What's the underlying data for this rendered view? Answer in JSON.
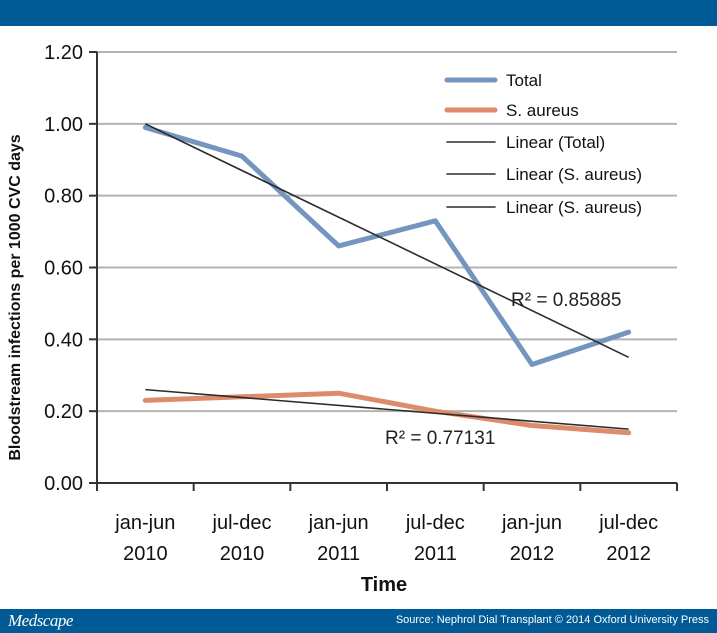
{
  "header": {},
  "footer": {
    "brand": "Medscape",
    "source": "Source: Nephrol Dial Transplant © 2014 Oxford University Press"
  },
  "colors": {
    "bar": "#005a96",
    "total": "#7496be",
    "s_aureus": "#de8b6b",
    "trend": "#2b2b2b",
    "grid": "#b3b3b3"
  },
  "chart_data": {
    "type": "line",
    "ylabel": "Bloodstream infections per 1000 CVC days",
    "xlabel": "Time",
    "ylim": [
      0,
      1.2
    ],
    "yticks": [
      "0.00",
      "0.20",
      "0.40",
      "0.60",
      "0.80",
      "1.00",
      "1.20"
    ],
    "categories": [
      [
        "jan-jun",
        "2010"
      ],
      [
        "jul-dec",
        "2010"
      ],
      [
        "jan-jun",
        "2011"
      ],
      [
        "jul-dec",
        "2011"
      ],
      [
        "jan-jun",
        "2012"
      ],
      [
        "jul-dec",
        "2012"
      ]
    ],
    "series": [
      {
        "name": "Total",
        "values": [
          0.99,
          0.91,
          0.66,
          0.73,
          0.33,
          0.42
        ]
      },
      {
        "name": "S. aureus",
        "values": [
          0.23,
          0.24,
          0.25,
          0.2,
          0.16,
          0.14
        ]
      }
    ],
    "trendlines": [
      {
        "name": "Linear (Total)",
        "start": 1.0,
        "end": 0.35,
        "r2": "R² = 0.85885"
      },
      {
        "name": "Linear (S. aureus)",
        "start": 0.26,
        "end": 0.15,
        "r2": "R² = 0.77131"
      }
    ],
    "legend": [
      "Total",
      "S. aureus",
      "Linear (Total)",
      "Linear (S. aureus)",
      "Linear (S. aureus)"
    ],
    "legend_position": "top-right",
    "grid": true
  }
}
